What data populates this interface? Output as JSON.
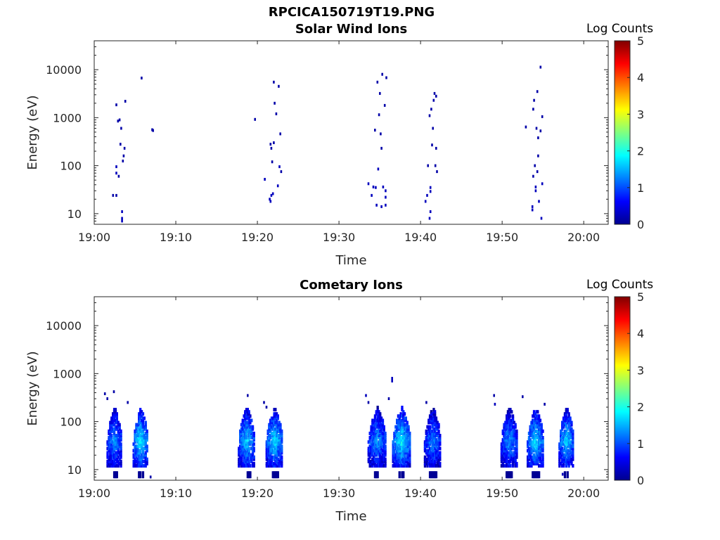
{
  "figure": {
    "title": "RPCICA150719T19.PNG"
  },
  "colorbar": {
    "label": "Log Counts",
    "ticks": [
      0,
      1,
      2,
      3,
      4,
      5
    ],
    "range": [
      0,
      5
    ],
    "colormap": [
      "#00008f",
      "#0000ff",
      "#0080ff",
      "#00ffff",
      "#80ff80",
      "#ffff00",
      "#ff8000",
      "#ff0000",
      "#800000"
    ]
  },
  "chart_data": [
    {
      "type": "heatmap",
      "title": "Solar Wind Ions",
      "xlabel": "Time",
      "ylabel": "Energy (eV)",
      "xticks": [
        "19:00",
        "19:10",
        "19:20",
        "19:30",
        "19:40",
        "19:50",
        "20:00"
      ],
      "xlim_minutes": [
        0,
        63
      ],
      "yticks": [
        10,
        100,
        1000,
        10000
      ],
      "ylim": [
        6,
        40000
      ],
      "yscale": "log",
      "colorbar_label": "Log Counts",
      "colorbar_range": [
        0,
        5
      ],
      "points": [
        [
          2.2,
          24,
          0.2
        ],
        [
          2.6,
          24,
          0.2
        ],
        [
          2.6,
          95,
          0.3
        ],
        [
          2.6,
          70,
          0.3
        ],
        [
          2.6,
          1850,
          0.2
        ],
        [
          2.8,
          850,
          0.2
        ],
        [
          3.0,
          900,
          0.2
        ],
        [
          2.9,
          60,
          0.2
        ],
        [
          3.2,
          600,
          0.2
        ],
        [
          3.1,
          280,
          0.2
        ],
        [
          3.3,
          11,
          0.3
        ],
        [
          3.3,
          8,
          0.3
        ],
        [
          3.3,
          7,
          0.3
        ],
        [
          3.5,
          160,
          0.2
        ],
        [
          3.6,
          230,
          0.2
        ],
        [
          3.7,
          2200,
          0.2
        ],
        [
          3.4,
          125,
          0.2
        ],
        [
          5.7,
          6700,
          0.2
        ],
        [
          7.0,
          560,
          0.2
        ],
        [
          7.1,
          540,
          0.2
        ],
        [
          19.6,
          920,
          0.2
        ],
        [
          20.8,
          52,
          0.3
        ],
        [
          21.4,
          20,
          0.3
        ],
        [
          21.5,
          18,
          0.3
        ],
        [
          21.6,
          24,
          0.3
        ],
        [
          21.8,
          26,
          0.3
        ],
        [
          21.5,
          280,
          0.2
        ],
        [
          21.6,
          230,
          0.2
        ],
        [
          21.7,
          120,
          0.2
        ],
        [
          21.9,
          5500,
          0.2
        ],
        [
          22.0,
          2000,
          0.2
        ],
        [
          22.2,
          1200,
          0.2
        ],
        [
          22.5,
          4500,
          0.2
        ],
        [
          22.7,
          460,
          0.2
        ],
        [
          22.6,
          95,
          0.3
        ],
        [
          22.4,
          38,
          0.3
        ],
        [
          22.8,
          75,
          0.2
        ],
        [
          21.9,
          300,
          0.2
        ],
        [
          33.5,
          42,
          0.3
        ],
        [
          33.9,
          24,
          0.3
        ],
        [
          34.1,
          36,
          0.3
        ],
        [
          34.3,
          550,
          0.2
        ],
        [
          34.5,
          15,
          0.3
        ],
        [
          34.6,
          5500,
          0.2
        ],
        [
          34.7,
          85,
          0.3
        ],
        [
          34.8,
          1150,
          0.2
        ],
        [
          35.0,
          460,
          0.2
        ],
        [
          35.1,
          14,
          0.3
        ],
        [
          35.1,
          230,
          0.2
        ],
        [
          35.2,
          8000,
          0.2
        ],
        [
          35.3,
          36,
          0.3
        ],
        [
          35.5,
          1800,
          0.2
        ],
        [
          35.6,
          30,
          0.3
        ],
        [
          35.6,
          22,
          0.3
        ],
        [
          35.7,
          6800,
          0.2
        ],
        [
          35.6,
          15,
          0.3
        ],
        [
          34.4,
          35,
          0.3
        ],
        [
          34.9,
          3200,
          0.2
        ],
        [
          40.5,
          18,
          0.3
        ],
        [
          40.7,
          24,
          0.3
        ],
        [
          40.8,
          100,
          0.2
        ],
        [
          41.0,
          8,
          0.3
        ],
        [
          41.1,
          11,
          0.3
        ],
        [
          41.1,
          35,
          0.3
        ],
        [
          41.1,
          29,
          0.3
        ],
        [
          41.2,
          1500,
          0.2
        ],
        [
          41.3,
          270,
          0.2
        ],
        [
          41.4,
          600,
          0.2
        ],
        [
          41.5,
          2300,
          0.2
        ],
        [
          41.6,
          3200,
          0.2
        ],
        [
          41.8,
          2800,
          0.2
        ],
        [
          41.7,
          100,
          0.2
        ],
        [
          41.8,
          230,
          0.2
        ],
        [
          41.9,
          75,
          0.2
        ],
        [
          41.0,
          1100,
          0.2
        ],
        [
          52.8,
          640,
          0.2
        ],
        [
          53.6,
          12,
          0.3
        ],
        [
          53.6,
          14,
          0.3
        ],
        [
          53.7,
          60,
          0.2
        ],
        [
          53.7,
          1500,
          0.2
        ],
        [
          53.8,
          2300,
          0.2
        ],
        [
          54.0,
          30,
          0.3
        ],
        [
          54.0,
          36,
          0.3
        ],
        [
          54.1,
          600,
          0.2
        ],
        [
          54.2,
          3500,
          0.2
        ],
        [
          54.3,
          160,
          0.2
        ],
        [
          54.2,
          75,
          0.2
        ],
        [
          54.3,
          380,
          0.2
        ],
        [
          54.4,
          18,
          0.3
        ],
        [
          54.6,
          11300,
          0.2
        ],
        [
          54.6,
          530,
          0.2
        ],
        [
          54.8,
          1050,
          0.2
        ],
        [
          54.7,
          8,
          0.3
        ],
        [
          54.8,
          42,
          0.3
        ],
        [
          53.9,
          100,
          0.2
        ]
      ]
    },
    {
      "type": "heatmap",
      "title": "Cometary Ions",
      "xlabel": "Time",
      "ylabel": "Energy (eV)",
      "xticks": [
        "19:00",
        "19:10",
        "19:20",
        "19:30",
        "19:40",
        "19:50",
        "20:00"
      ],
      "xlim_minutes": [
        0,
        63
      ],
      "yticks": [
        10,
        100,
        1000,
        10000
      ],
      "ylim": [
        6,
        40000
      ],
      "yscale": "log",
      "colorbar_label": "Log Counts",
      "colorbar_range": [
        0,
        5
      ],
      "bursts": [
        {
          "center": 2.4,
          "width": 1.8,
          "peak": 1.4
        },
        {
          "center": 5.6,
          "width": 1.8,
          "peak": 1.9
        },
        {
          "center": 18.6,
          "width": 2.0,
          "peak": 1.7
        },
        {
          "center": 22.0,
          "width": 2.0,
          "peak": 1.8
        },
        {
          "center": 34.6,
          "width": 2.2,
          "peak": 1.4
        },
        {
          "center": 37.6,
          "width": 2.2,
          "peak": 1.9
        },
        {
          "center": 41.4,
          "width": 2.0,
          "peak": 1.3
        },
        {
          "center": 50.8,
          "width": 2.0,
          "peak": 1.4
        },
        {
          "center": 54.0,
          "width": 2.0,
          "peak": 1.8
        },
        {
          "center": 57.8,
          "width": 1.8,
          "peak": 1.7
        }
      ],
      "points": [
        [
          1.2,
          380,
          0.2
        ],
        [
          1.5,
          300,
          0.2
        ],
        [
          2.3,
          420,
          0.2
        ],
        [
          4.0,
          250,
          0.2
        ],
        [
          6.8,
          7,
          0.2
        ],
        [
          18.7,
          350,
          0.2
        ],
        [
          20.7,
          250,
          0.2
        ],
        [
          21.0,
          200,
          0.2
        ],
        [
          33.2,
          350,
          0.3
        ],
        [
          33.5,
          250,
          0.2
        ],
        [
          36.4,
          800,
          0.3
        ],
        [
          36.4,
          700,
          0.3
        ],
        [
          36.0,
          300,
          0.2
        ],
        [
          40.6,
          250,
          0.2
        ],
        [
          48.9,
          350,
          0.2
        ],
        [
          49.0,
          230,
          0.3
        ],
        [
          52.4,
          330,
          0.2
        ],
        [
          55.1,
          230,
          0.2
        ],
        [
          57.3,
          8,
          0.3
        ]
      ]
    }
  ]
}
